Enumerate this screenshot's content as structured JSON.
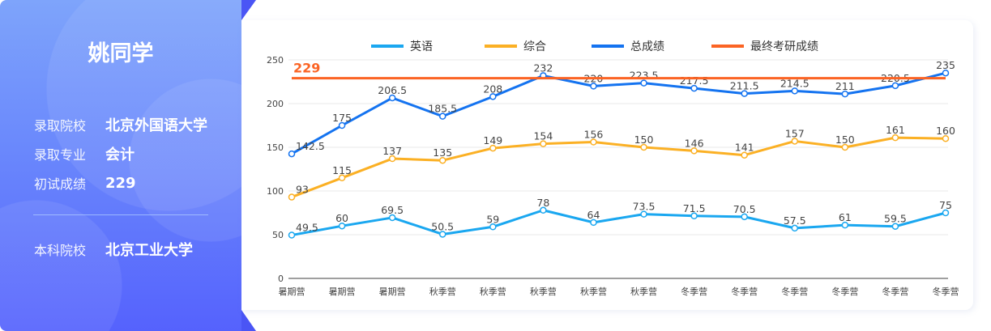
{
  "student": {
    "name": "姚同学",
    "fields": [
      {
        "label": "录取院校",
        "value": "北京外国语大学"
      },
      {
        "label": "录取专业",
        "value": "会计"
      },
      {
        "label": "初试成绩",
        "value": "229"
      }
    ],
    "undergrad": {
      "label": "本科院校",
      "value": "北京工业大学"
    }
  },
  "chart_data": {
    "type": "line",
    "categories": [
      "暑期营",
      "暑期营",
      "暑期营",
      "秋季营",
      "秋季营",
      "秋季营",
      "秋季营",
      "秋季营",
      "冬季营",
      "冬季营",
      "冬季营",
      "冬季营",
      "冬季营",
      "冬季营"
    ],
    "ylim": [
      0,
      250
    ],
    "yticks": [
      0,
      50,
      100,
      150,
      200,
      250
    ],
    "grid": true,
    "legend_position": "top",
    "series": [
      {
        "name": "英语",
        "color": "#1aa7f0",
        "values": [
          49.5,
          60,
          69.5,
          50.5,
          59,
          78,
          64,
          73.5,
          71.5,
          70.5,
          57.5,
          61,
          59.5,
          75
        ]
      },
      {
        "name": "综合",
        "color": "#fbb024",
        "values": [
          93,
          115,
          137,
          135,
          149,
          154,
          156,
          150,
          146,
          141,
          157,
          150,
          161,
          160
        ]
      },
      {
        "name": "总成绩",
        "color": "#1473f0",
        "values": [
          142.5,
          175,
          206.5,
          185.5,
          208,
          232,
          220,
          223.5,
          217.5,
          211.5,
          214.5,
          211,
          220.5,
          235
        ]
      },
      {
        "name": "最终考研成绩",
        "color": "#fb6424",
        "constant": 229,
        "label": "229"
      }
    ]
  }
}
